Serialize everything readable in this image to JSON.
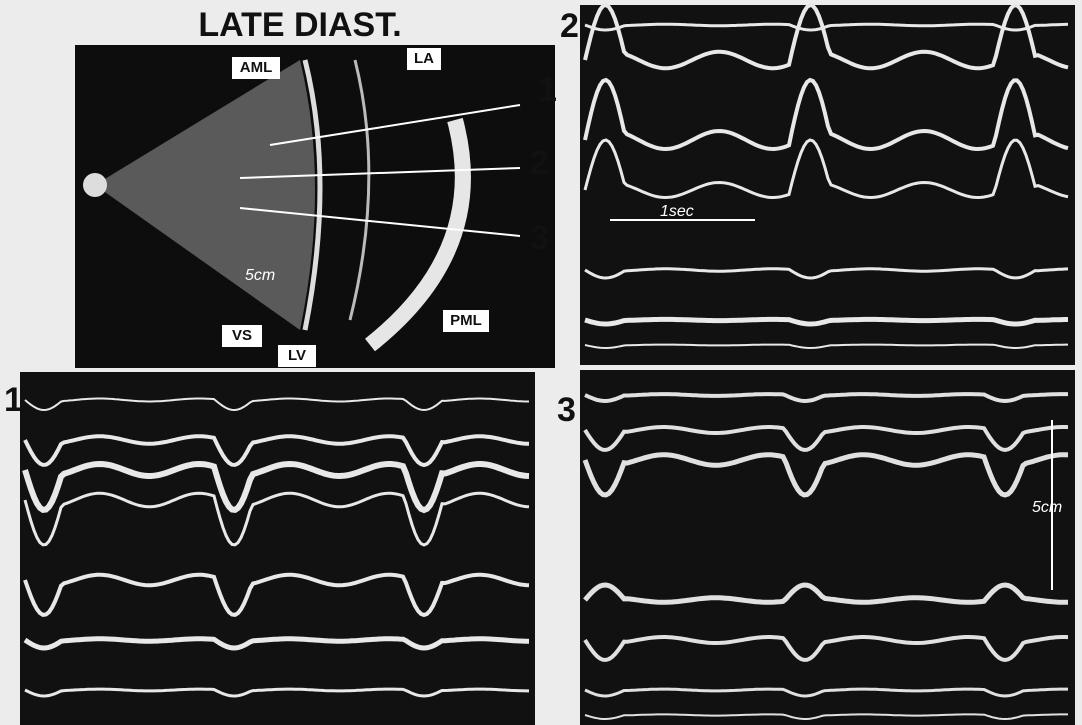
{
  "sector_scan": {
    "title": "LATE DIAST.",
    "labels": {
      "aml": "AML",
      "la": "LA",
      "vs": "VS",
      "lv": "LV",
      "pml": "PML",
      "scale": "5cm"
    },
    "beam_numbers": [
      "1",
      "2",
      "3"
    ]
  },
  "panels": [
    {
      "number": "1"
    },
    {
      "number": "2",
      "annotation": "1sec"
    },
    {
      "number": "3",
      "annotation": "5cm"
    }
  ]
}
